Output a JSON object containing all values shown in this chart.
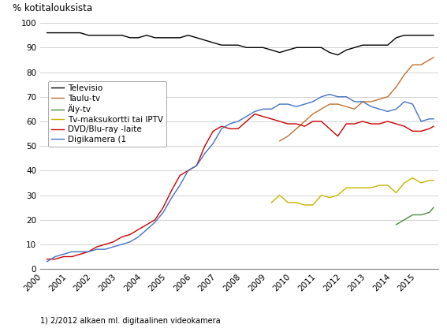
{
  "title": "% kotitalouksista",
  "footnote": "1) 2/2012 alkaen ml. digitaalinen videokamera",
  "legend": [
    "Televisio",
    "Taulu-tv",
    "Äly-tv",
    "Tv-maksukortti tai IPTV",
    "DVD/Blu-ray -laite",
    "Digikamera (1"
  ],
  "colors": [
    "#000000",
    "#c07030",
    "#4d8b3e",
    "#c8b400",
    "#cc0000",
    "#4472c4"
  ],
  "televisio": {
    "x": [
      2000.17,
      2000.5,
      2000.83,
      2001.17,
      2001.5,
      2001.83,
      2002.17,
      2002.5,
      2002.83,
      2003.17,
      2003.5,
      2003.83,
      2004.17,
      2004.5,
      2004.83,
      2005.17,
      2005.5,
      2005.83,
      2006.17,
      2006.5,
      2006.83,
      2007.17,
      2007.5,
      2007.83,
      2008.17,
      2008.5,
      2008.83,
      2009.17,
      2009.5,
      2009.83,
      2010.17,
      2010.5,
      2010.83,
      2011.17,
      2011.5,
      2011.83,
      2012.17,
      2012.5,
      2012.83,
      2013.17,
      2013.5,
      2013.83,
      2014.17,
      2014.5,
      2014.83,
      2015.17,
      2015.5,
      2015.67
    ],
    "y": [
      96,
      96,
      96,
      96,
      96,
      95,
      95,
      95,
      95,
      95,
      94,
      94,
      95,
      94,
      94,
      94,
      94,
      95,
      94,
      93,
      92,
      91,
      91,
      91,
      90,
      90,
      90,
      89,
      88,
      89,
      90,
      90,
      90,
      90,
      88,
      87,
      89,
      90,
      91,
      91,
      91,
      91,
      94,
      95,
      95,
      95,
      95,
      95
    ]
  },
  "taulu_tv": {
    "x": [
      2009.5,
      2009.83,
      2010.17,
      2010.5,
      2010.83,
      2011.17,
      2011.5,
      2011.83,
      2012.17,
      2012.5,
      2012.83,
      2013.17,
      2013.5,
      2013.83,
      2014.17,
      2014.5,
      2014.83,
      2015.17,
      2015.5,
      2015.67
    ],
    "y": [
      52,
      54,
      57,
      60,
      63,
      65,
      67,
      67,
      66,
      65,
      68,
      68,
      69,
      70,
      74,
      79,
      83,
      83,
      85,
      86
    ]
  },
  "aly_tv": {
    "x": [
      2014.17,
      2014.5,
      2014.83,
      2015.17,
      2015.5,
      2015.67
    ],
    "y": [
      18,
      20,
      22,
      22,
      23,
      25
    ]
  },
  "tv_maksukortti": {
    "x": [
      2009.17,
      2009.5,
      2009.83,
      2010.17,
      2010.5,
      2010.83,
      2011.17,
      2011.5,
      2011.83,
      2012.17,
      2012.5,
      2012.83,
      2013.17,
      2013.5,
      2013.83,
      2014.17,
      2014.5,
      2014.83,
      2015.17,
      2015.5,
      2015.67
    ],
    "y": [
      27,
      30,
      27,
      27,
      26,
      26,
      30,
      29,
      30,
      33,
      33,
      33,
      33,
      34,
      34,
      31,
      35,
      37,
      35,
      36,
      36
    ]
  },
  "dvd_bluray": {
    "x": [
      2000.17,
      2000.5,
      2000.83,
      2001.17,
      2001.5,
      2001.83,
      2002.17,
      2002.5,
      2002.83,
      2003.17,
      2003.5,
      2003.83,
      2004.17,
      2004.5,
      2004.83,
      2005.17,
      2005.5,
      2005.83,
      2006.17,
      2006.5,
      2006.83,
      2007.17,
      2007.5,
      2007.83,
      2008.17,
      2008.5,
      2008.83,
      2009.17,
      2009.5,
      2009.83,
      2010.17,
      2010.5,
      2010.83,
      2011.17,
      2011.5,
      2011.83,
      2012.17,
      2012.5,
      2012.83,
      2013.17,
      2013.5,
      2013.83,
      2014.17,
      2014.5,
      2014.83,
      2015.17,
      2015.5,
      2015.67
    ],
    "y": [
      4,
      4,
      5,
      5,
      6,
      7,
      9,
      10,
      11,
      13,
      14,
      16,
      18,
      20,
      25,
      32,
      38,
      40,
      42,
      50,
      56,
      58,
      57,
      57,
      60,
      63,
      62,
      61,
      60,
      59,
      59,
      58,
      60,
      60,
      57,
      54,
      59,
      59,
      60,
      59,
      59,
      60,
      59,
      58,
      56,
      56,
      57,
      58
    ]
  },
  "digikamera": {
    "x": [
      2000.17,
      2000.5,
      2000.83,
      2001.17,
      2001.5,
      2001.83,
      2002.17,
      2002.5,
      2002.83,
      2003.17,
      2003.5,
      2003.83,
      2004.17,
      2004.5,
      2004.83,
      2005.17,
      2005.5,
      2005.83,
      2006.17,
      2006.5,
      2006.83,
      2007.17,
      2007.5,
      2007.83,
      2008.17,
      2008.5,
      2008.83,
      2009.17,
      2009.5,
      2009.83,
      2010.17,
      2010.5,
      2010.83,
      2011.17,
      2011.5,
      2011.83,
      2012.17,
      2012.5,
      2012.83,
      2013.17,
      2013.5,
      2013.83,
      2014.17,
      2014.5,
      2014.83,
      2015.17,
      2015.5,
      2015.67
    ],
    "y": [
      3,
      5,
      6,
      7,
      7,
      7,
      8,
      8,
      9,
      10,
      11,
      13,
      16,
      19,
      23,
      29,
      34,
      40,
      42,
      47,
      51,
      57,
      59,
      60,
      62,
      64,
      65,
      65,
      67,
      67,
      66,
      67,
      68,
      70,
      71,
      70,
      70,
      68,
      68,
      66,
      65,
      64,
      65,
      68,
      67,
      60,
      61,
      61
    ]
  },
  "xlim": [
    1999.9,
    2015.85
  ],
  "ylim": [
    0,
    100
  ],
  "yticks": [
    0,
    10,
    20,
    30,
    40,
    50,
    60,
    70,
    80,
    90,
    100
  ],
  "xticks": [
    2000,
    2001,
    2002,
    2003,
    2004,
    2005,
    2006,
    2007,
    2008,
    2009,
    2010,
    2011,
    2012,
    2013,
    2014,
    2015
  ],
  "grid_color": "#c0c0c0",
  "bg_color": "#ffffff"
}
